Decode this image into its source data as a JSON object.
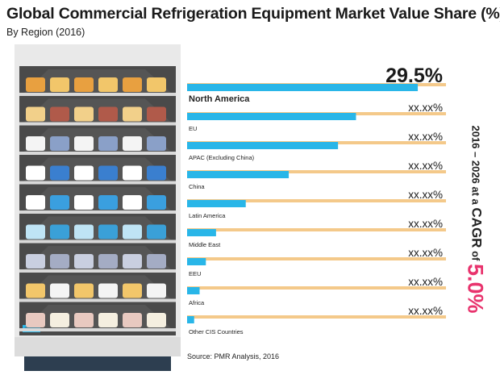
{
  "header": {
    "title": "Global Commercial Refrigeration Equipment Market Value Share (%)",
    "subtitle": "By Region (2016)"
  },
  "cagr": {
    "period_text": "2016 – 2026 at a ",
    "cagr_word": "CAGR",
    "of_word": " of ",
    "value": "5.0%"
  },
  "source": "Source: PMR Analysis, 2016",
  "colors": {
    "bar": "#29b6e8",
    "track": "#f4c98a",
    "accent": "#e8336d",
    "shelf": "#d9d9d9"
  },
  "chart_data": {
    "type": "bar",
    "orientation": "horizontal",
    "title": "Global Commercial Refrigeration Equipment Market Value Share (%)",
    "subtitle": "By Region (2016)",
    "xlim": [
      0,
      100
    ],
    "categories": [
      "North America",
      "EU",
      "APAC (Excluding China)",
      "China",
      "Latin America",
      "Middle East",
      "EEU",
      "Africa",
      "Other CIS Countries"
    ],
    "values": [
      29.5,
      21.6,
      19.3,
      13.0,
      7.5,
      3.7,
      2.4,
      1.6,
      0.9
    ],
    "value_labels": [
      "29.5%",
      "xx.xx%",
      "xx.xx%",
      "xx.xx%",
      "xx.xx%",
      "xx.xx%",
      "xx.xx%",
      "xx.xx%",
      "xx.xx%"
    ]
  }
}
